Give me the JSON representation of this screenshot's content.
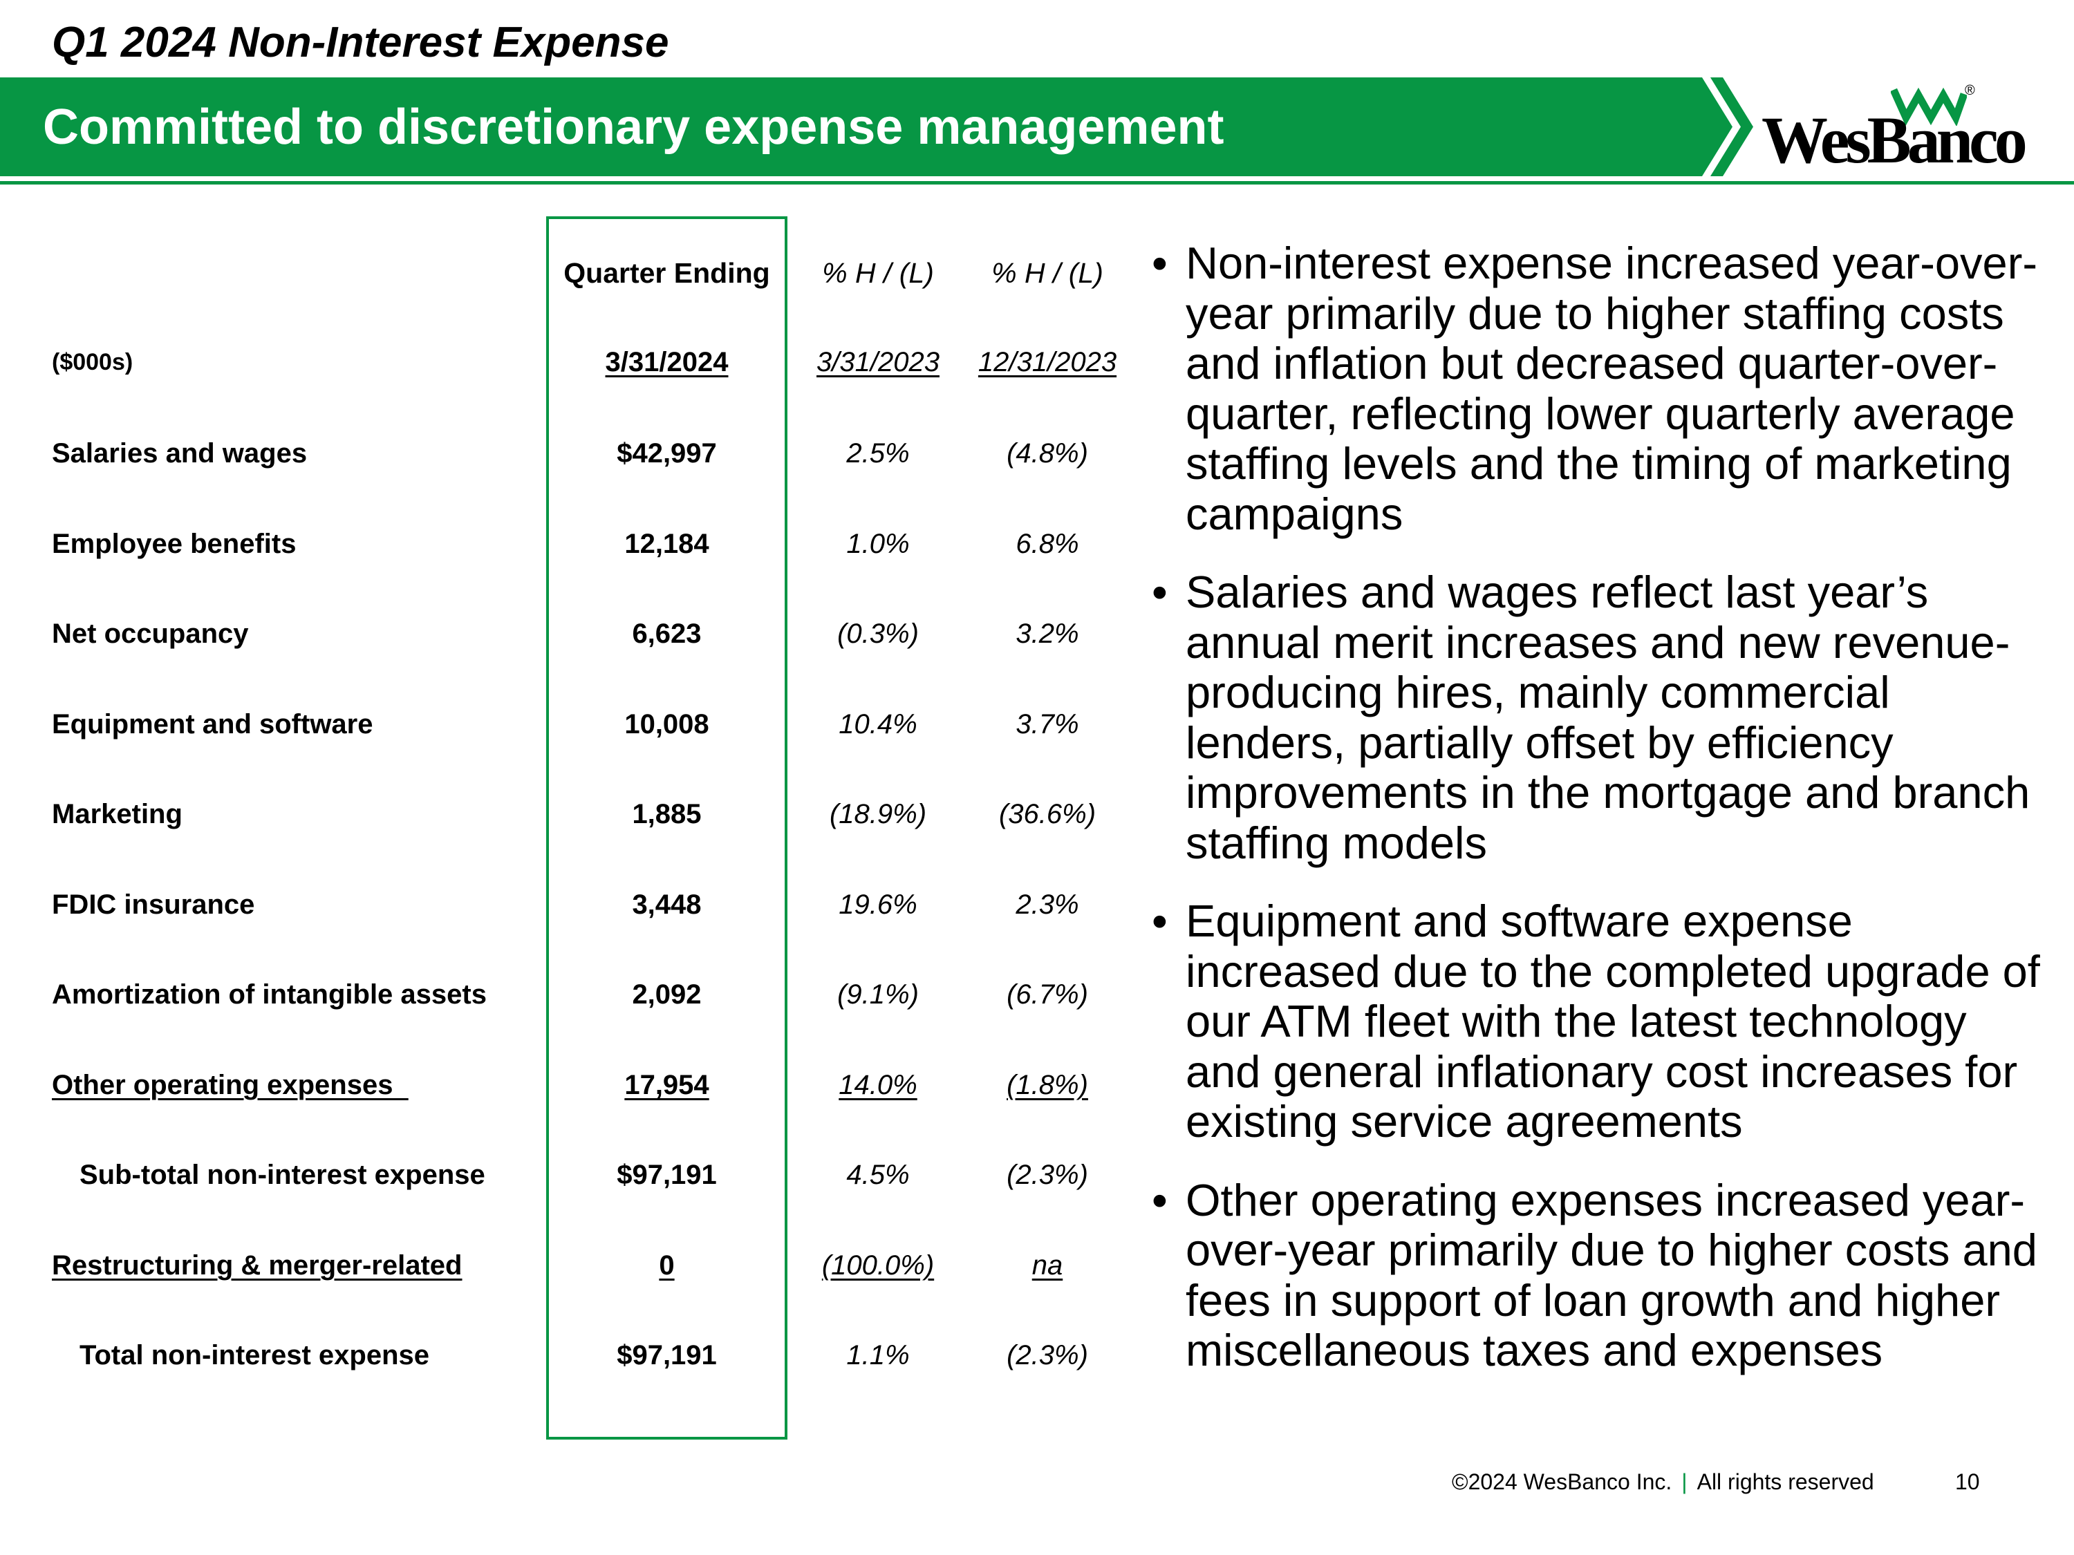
{
  "header": {
    "top_title": "Q1 2024 Non-Interest Expense",
    "banner_title": "Committed to discretionary expense management",
    "logo_text": "WesBanco",
    "logo_registered": "®"
  },
  "colors": {
    "brand_green": "#079644",
    "text": "#000000",
    "background": "#ffffff"
  },
  "table": {
    "col_headers": [
      "Quarter Ending",
      "% H / (L)",
      "% H / (L)"
    ],
    "units_label": "($000s)",
    "dates": [
      "3/31/2024",
      "3/31/2023",
      "12/31/2023"
    ],
    "rows": [
      {
        "label": "Salaries and wages",
        "value": "$42,997",
        "yoy": "2.5%",
        "qoq": "(4.8%)"
      },
      {
        "label": "Employee benefits",
        "value": "12,184",
        "yoy": "1.0%",
        "qoq": "6.8%"
      },
      {
        "label": "Net occupancy",
        "value": "6,623",
        "yoy": "(0.3%)",
        "qoq": "3.2%"
      },
      {
        "label": "Equipment and software",
        "value": "10,008",
        "yoy": "10.4%",
        "qoq": "3.7%"
      },
      {
        "label": "Marketing",
        "value": "1,885",
        "yoy": "(18.9%)",
        "qoq": "(36.6%)"
      },
      {
        "label": "FDIC insurance",
        "value": "3,448",
        "yoy": "19.6%",
        "qoq": "2.3%"
      },
      {
        "label": "Amortization of intangible assets",
        "value": "2,092",
        "yoy": "(9.1%)",
        "qoq": "(6.7%)"
      },
      {
        "label": "Other operating expenses",
        "value": "17,954",
        "yoy": "14.0%",
        "qoq": "(1.8%)"
      },
      {
        "label": "Sub-total non-interest expense",
        "value": "$97,191",
        "yoy": "4.5%",
        "qoq": "(2.3%)"
      },
      {
        "label": "Restructuring & merger-related",
        "value": "0",
        "yoy": "(100.0%)",
        "qoq": "na"
      },
      {
        "label": "Total non-interest expense",
        "value": "$97,191",
        "yoy": "1.1%",
        "qoq": "(2.3%)"
      }
    ]
  },
  "bullets": [
    "Non-interest expense increased year-over-year primarily due to higher staffing costs and inflation but decreased quarter-over-quarter, reflecting lower quarterly average staffing levels and the timing of marketing campaigns",
    "Salaries and wages reflect last year’s annual merit increases and new revenue-producing hires, mainly commercial lenders, partially offset by efficiency improvements in the mortgage and branch staffing models",
    "Equipment and software expense increased due to the completed upgrade of our ATM fleet with the latest technology and general inflationary cost increases for existing service agreements",
    "Other operating expenses increased year-over-year primarily due to higher costs and fees in support of loan growth and higher miscellaneous taxes and expenses"
  ],
  "footer": {
    "copyright": "©2024 WesBanco Inc.",
    "separator": "|",
    "rights": "All rights reserved",
    "page_number": "10"
  }
}
